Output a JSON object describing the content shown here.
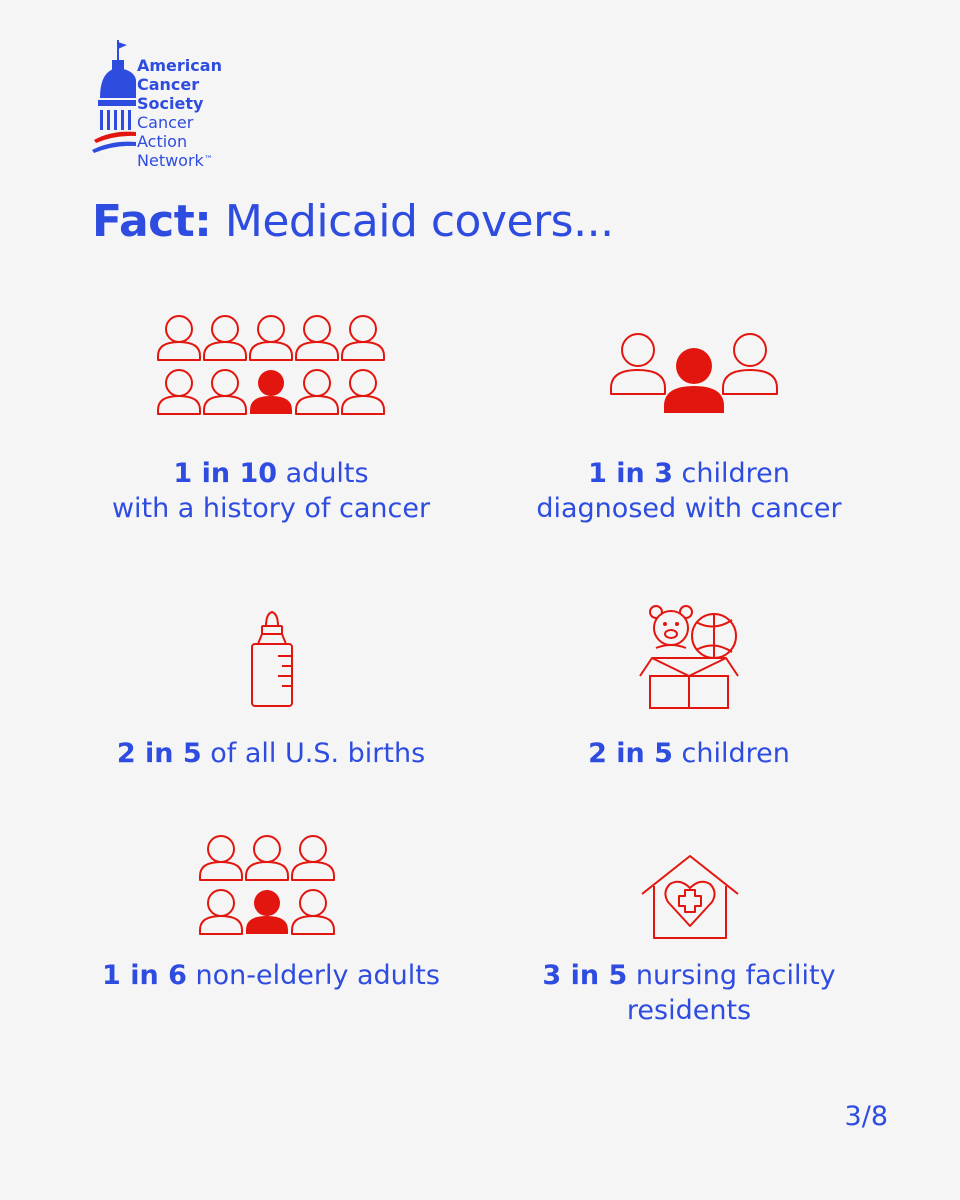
{
  "logo": {
    "line1": "American",
    "line2": "Cancer",
    "line3": "Society",
    "line4": "Cancer",
    "line5": "Action",
    "line6": "Network",
    "trademark": "™"
  },
  "title": {
    "bold": "Fact:",
    "rest": " Medicaid covers..."
  },
  "stats": [
    {
      "num": "1 in 10",
      "text": " adults",
      "line2": "with a history of cancer",
      "icon": "adults-group-icon"
    },
    {
      "num": "1 in 3",
      "text": " children",
      "line2": "diagnosed with cancer",
      "icon": "three-people-icon"
    },
    {
      "num": "2 in 5",
      "text": " of all U.S. births",
      "line2": "",
      "icon": "baby-bottle-icon"
    },
    {
      "num": "2 in 5",
      "text": " children",
      "line2": "",
      "icon": "toy-box-icon"
    },
    {
      "num": "1 in 6",
      "text": " non-elderly adults",
      "line2": "",
      "icon": "six-people-icon"
    },
    {
      "num": "3 in 5",
      "text": " nursing facility",
      "line2": "residents",
      "icon": "care-home-icon"
    }
  ],
  "page_number": "3/8",
  "colors": {
    "blue": "#2e4ce0",
    "red": "#e3160f",
    "background": "#f5f5f5"
  }
}
